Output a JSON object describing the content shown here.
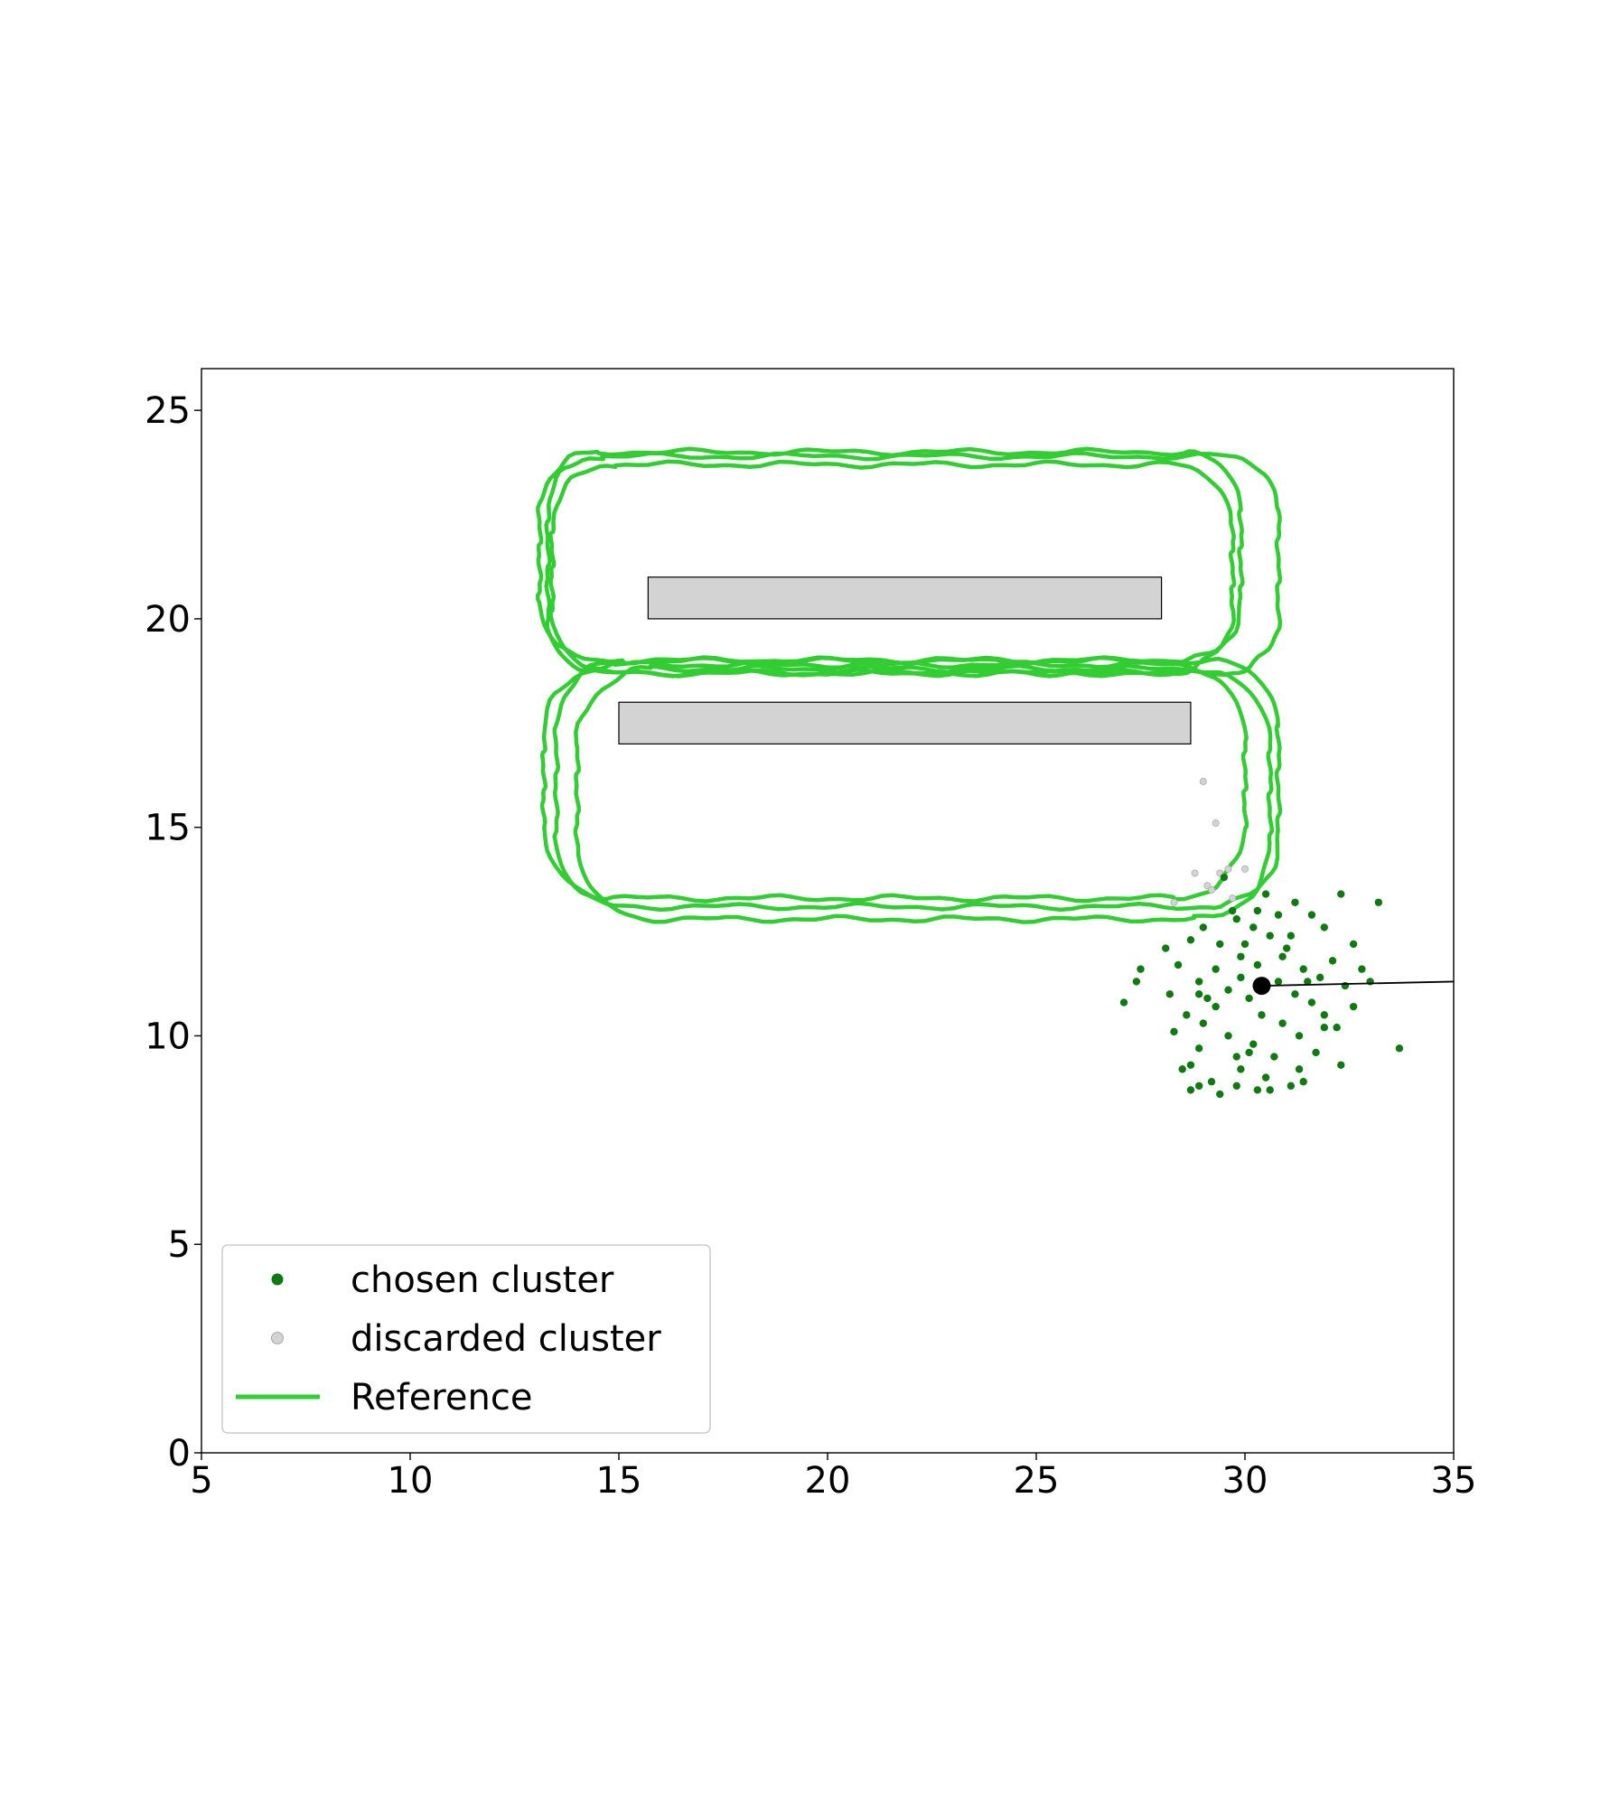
{
  "chart_data": {
    "type": "scatter",
    "xlim": [
      5,
      35
    ],
    "ylim": [
      0,
      26
    ],
    "xticks": [
      5,
      10,
      15,
      20,
      25,
      30,
      35
    ],
    "yticks": [
      0,
      5,
      10,
      15,
      20,
      25
    ],
    "grid": false,
    "legend": {
      "placement": "lower-left",
      "entries": [
        {
          "label": "chosen cluster",
          "kind": "point",
          "color": "#0f7a0f"
        },
        {
          "label": "discarded cluster",
          "kind": "point",
          "color": "#d3d3d3"
        },
        {
          "label": "Reference",
          "kind": "line",
          "color": "#32cd32"
        }
      ]
    },
    "obstacles": [
      {
        "x0": 15.7,
        "x1": 28.0,
        "y0": 20.0,
        "y1": 21.0,
        "color": "#d3d3d3"
      },
      {
        "x0": 15.0,
        "x1": 28.7,
        "y0": 17.0,
        "y1": 18.0,
        "color": "#d3d3d3"
      }
    ],
    "reference": {
      "name": "Reference",
      "color": "#32cd32",
      "loops": [
        {
          "x0": 13.1,
          "x1": 29.9,
          "y0": 19.0,
          "y1": 24.0,
          "r": 1.4
        },
        {
          "x0": 13.4,
          "x1": 29.7,
          "y0": 18.7,
          "y1": 23.7,
          "r": 1.5
        },
        {
          "x0": 13.2,
          "x1": 30.0,
          "y0": 13.3,
          "y1": 18.9,
          "r": 1.7
        },
        {
          "x0": 14.0,
          "x1": 30.6,
          "y0": 12.8,
          "y1": 18.8,
          "r": 1.8
        },
        {
          "x0": 13.5,
          "x1": 30.8,
          "y0": 13.1,
          "y1": 19.0,
          "r": 1.6
        },
        {
          "x0": 13.3,
          "x1": 30.8,
          "y0": 18.7,
          "y1": 23.9,
          "r": 1.3
        }
      ]
    },
    "estimate": {
      "x": 30.4,
      "y": 11.2,
      "heading_to": [
        35.0,
        11.3
      ],
      "color": "#000000"
    },
    "chosen_cluster": {
      "name": "chosen cluster",
      "color": "#0f7a0f",
      "points": [
        [
          29.5,
          13.8
        ],
        [
          30.5,
          13.4
        ],
        [
          31.2,
          13.2
        ],
        [
          32.3,
          13.4
        ],
        [
          33.2,
          13.2
        ],
        [
          30.8,
          12.9
        ],
        [
          29.8,
          12.8
        ],
        [
          29.0,
          12.6
        ],
        [
          31.6,
          12.9
        ],
        [
          30.2,
          12.6
        ],
        [
          28.7,
          12.3
        ],
        [
          31.9,
          12.6
        ],
        [
          30.6,
          12.4
        ],
        [
          29.4,
          12.2
        ],
        [
          32.6,
          12.2
        ],
        [
          28.1,
          12.1
        ],
        [
          31.0,
          12.1
        ],
        [
          29.9,
          11.9
        ],
        [
          30.9,
          11.9
        ],
        [
          32.1,
          11.8
        ],
        [
          28.4,
          11.7
        ],
        [
          29.3,
          11.6
        ],
        [
          30.3,
          11.7
        ],
        [
          31.4,
          11.6
        ],
        [
          32.8,
          11.6
        ],
        [
          27.5,
          11.6
        ],
        [
          29.9,
          11.4
        ],
        [
          31.8,
          11.4
        ],
        [
          33.0,
          11.3
        ],
        [
          28.9,
          11.3
        ],
        [
          30.8,
          11.3
        ],
        [
          27.4,
          11.3
        ],
        [
          32.4,
          11.2
        ],
        [
          29.6,
          11.1
        ],
        [
          31.2,
          11.0
        ],
        [
          28.2,
          11.0
        ],
        [
          30.1,
          10.9
        ],
        [
          27.1,
          10.8
        ],
        [
          31.6,
          10.8
        ],
        [
          29.3,
          10.7
        ],
        [
          32.6,
          10.7
        ],
        [
          28.6,
          10.5
        ],
        [
          30.4,
          10.5
        ],
        [
          31.9,
          10.5
        ],
        [
          29.0,
          10.3
        ],
        [
          30.9,
          10.3
        ],
        [
          32.2,
          10.2
        ],
        [
          28.3,
          10.1
        ],
        [
          29.6,
          10.0
        ],
        [
          31.3,
          10.0
        ],
        [
          30.2,
          9.8
        ],
        [
          28.9,
          9.7
        ],
        [
          31.7,
          9.6
        ],
        [
          29.8,
          9.5
        ],
        [
          30.7,
          9.5
        ],
        [
          33.7,
          9.7
        ],
        [
          28.7,
          9.3
        ],
        [
          29.9,
          9.2
        ],
        [
          31.3,
          9.2
        ],
        [
          32.3,
          9.3
        ],
        [
          28.5,
          9.2
        ],
        [
          30.5,
          9.0
        ],
        [
          29.2,
          8.9
        ],
        [
          31.4,
          8.9
        ],
        [
          28.9,
          8.8
        ],
        [
          29.8,
          8.8
        ],
        [
          30.3,
          8.7
        ],
        [
          30.6,
          8.7
        ],
        [
          28.7,
          8.7
        ],
        [
          31.1,
          8.8
        ],
        [
          29.4,
          8.6
        ],
        [
          30.1,
          9.6
        ],
        [
          29.1,
          10.9
        ],
        [
          31.5,
          11.3
        ],
        [
          30.0,
          12.2
        ],
        [
          28.9,
          11.0
        ],
        [
          31.1,
          12.4
        ],
        [
          29.7,
          13.0
        ],
        [
          30.3,
          13.0
        ],
        [
          31.9,
          10.2
        ]
      ]
    },
    "discarded_cluster": {
      "name": "discarded cluster",
      "color": "#d3d3d3",
      "points": [
        [
          29.0,
          16.1
        ],
        [
          29.3,
          15.1
        ],
        [
          28.8,
          13.9
        ],
        [
          29.4,
          13.9
        ],
        [
          29.6,
          14.0
        ],
        [
          30.0,
          14.0
        ],
        [
          29.1,
          13.6
        ],
        [
          29.2,
          13.5
        ],
        [
          28.3,
          13.2
        ],
        [
          29.7,
          13.3
        ]
      ]
    }
  }
}
